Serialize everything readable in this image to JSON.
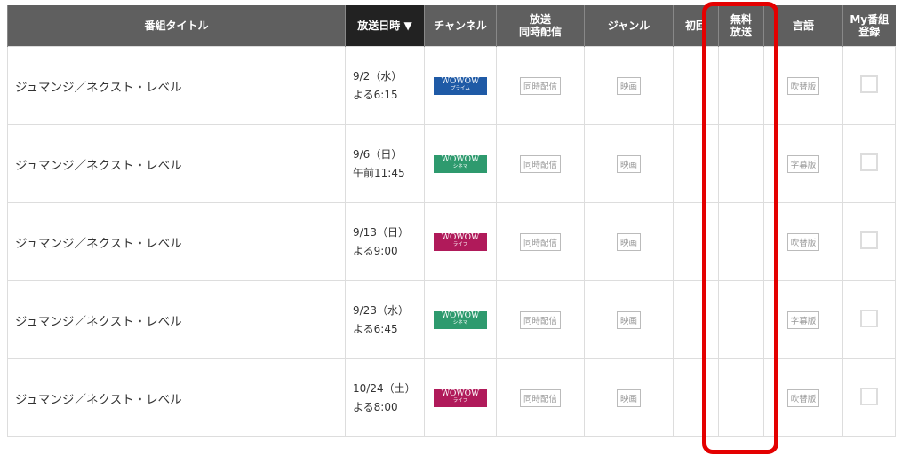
{
  "headers": {
    "title": "番組タイトル",
    "date": "放送日時 ▼",
    "channel": "チャンネル",
    "simul": "放送\n同時配信",
    "genre": "ジャンル",
    "first": "初回",
    "free": "無料\n放送",
    "lang": "言語",
    "my": "My番組\n登録"
  },
  "rows": [
    {
      "title": "ジュマンジ／ネクスト・レベル",
      "date": "9/2（水）",
      "time": "よる6:15",
      "channel": "WOWOW",
      "channel_sub": "プライム",
      "channel_color": "#1f5aa6",
      "simul": "同時配信",
      "genre": "映画",
      "lang": "吹替版",
      "checked": false
    },
    {
      "title": "ジュマンジ／ネクスト・レベル",
      "date": "9/6（日）",
      "time": "午前11:45",
      "channel": "WOWOW",
      "channel_sub": "シネマ",
      "channel_color": "#2e9a6e",
      "simul": "同時配信",
      "genre": "映画",
      "lang": "字幕版",
      "checked": false
    },
    {
      "title": "ジュマンジ／ネクスト・レベル",
      "date": "9/13（日）",
      "time": "よる9:00",
      "channel": "WOWOW",
      "channel_sub": "ライフ",
      "channel_color": "#b01a5a",
      "simul": "同時配信",
      "genre": "映画",
      "lang": "吹替版",
      "checked": false
    },
    {
      "title": "ジュマンジ／ネクスト・レベル",
      "date": "9/23（水）",
      "time": "よる6:45",
      "channel": "WOWOW",
      "channel_sub": "シネマ",
      "channel_color": "#2e9a6e",
      "simul": "同時配信",
      "genre": "映画",
      "lang": "字幕版",
      "checked": false
    },
    {
      "title": "ジュマンジ／ネクスト・レベル",
      "date": "10/24（土）",
      "time": "よる8:00",
      "channel": "WOWOW",
      "channel_sub": "ライフ",
      "channel_color": "#b01a5a",
      "simul": "同時配信",
      "genre": "映画",
      "lang": "吹替版",
      "checked": false
    }
  ],
  "highlight_color": "#e40000"
}
